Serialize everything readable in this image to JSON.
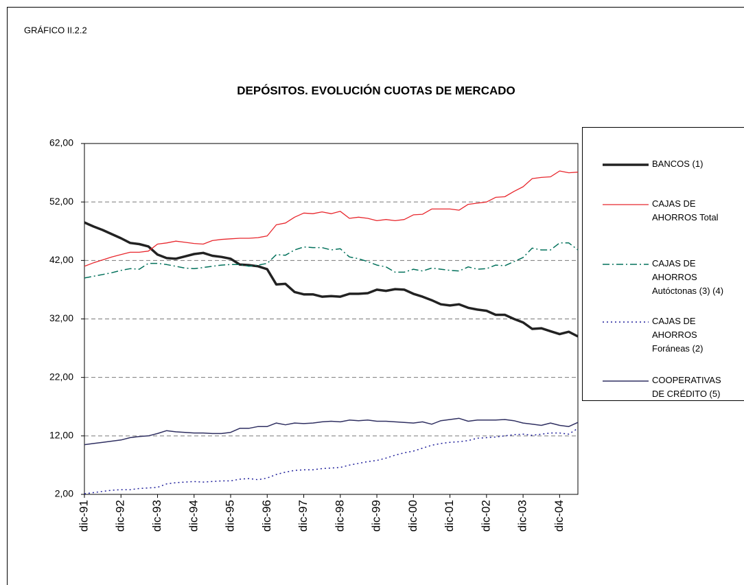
{
  "chart_data": {
    "type": "line",
    "label": "GRÁFICO II.2.2",
    "title": "DEPÓSITOS. EVOLUCIÓN CUOTAS DE MERCADO",
    "categories": [
      "dic-91",
      null,
      null,
      null,
      "dic-92",
      null,
      null,
      null,
      "dic-93",
      null,
      null,
      null,
      "dic-94",
      null,
      null,
      null,
      "dic-95",
      null,
      null,
      null,
      "dic-96",
      null,
      null,
      null,
      "dic-97",
      null,
      null,
      null,
      "dic-98",
      null,
      null,
      null,
      "dic-99",
      null,
      null,
      null,
      "dic-00",
      null,
      null,
      null,
      "dic-01",
      null,
      null,
      null,
      "dic-02",
      null,
      null,
      null,
      "dic-03",
      null,
      null,
      null,
      "dic-04",
      null,
      null
    ],
    "ylim": [
      2,
      62
    ],
    "yticks": [
      {
        "value": 2,
        "label": "2,00"
      },
      {
        "value": 12,
        "label": "12,00"
      },
      {
        "value": 22,
        "label": "22,00"
      },
      {
        "value": 32,
        "label": "32,00"
      },
      {
        "value": 42,
        "label": "42,00"
      },
      {
        "value": 52,
        "label": "52,00"
      },
      {
        "value": 62,
        "label": "62,00"
      }
    ],
    "grid": true,
    "legend": "right",
    "series": [
      {
        "name": "BANCOS (1)",
        "color": "#222222",
        "width": 3.5,
        "line_style": "solid",
        "values": [
          48.5,
          47.8,
          47.2,
          46.5,
          45.8,
          45.0,
          44.8,
          44.4,
          43.0,
          42.4,
          42.3,
          42.7,
          43.1,
          43.3,
          42.8,
          42.6,
          42.3,
          41.3,
          41.2,
          41.0,
          40.5,
          37.9,
          38.0,
          36.6,
          36.2,
          36.2,
          35.8,
          35.9,
          35.8,
          36.3,
          36.3,
          36.4,
          37.0,
          36.8,
          37.1,
          37.0,
          36.3,
          35.8,
          35.2,
          34.5,
          34.3,
          34.5,
          33.9,
          33.6,
          33.4,
          32.7,
          32.7,
          32.0,
          31.4,
          30.3,
          30.4,
          29.9,
          29.4,
          29.8,
          29.0
        ]
      },
      {
        "name": "CAJAS DE AHORROS Total",
        "color": "#e8262c",
        "width": 1.3,
        "line_style": "solid",
        "values": [
          41.0,
          41.6,
          42.1,
          42.6,
          43.0,
          43.4,
          43.4,
          43.6,
          44.8,
          45.0,
          45.3,
          45.1,
          44.9,
          44.8,
          45.4,
          45.6,
          45.7,
          45.8,
          45.8,
          45.9,
          46.2,
          48.1,
          48.4,
          49.4,
          50.1,
          50.0,
          50.3,
          50.0,
          50.4,
          49.2,
          49.4,
          49.2,
          48.8,
          49.0,
          48.8,
          49.0,
          49.8,
          49.9,
          50.8,
          50.8,
          50.8,
          50.6,
          51.6,
          51.8,
          52.0,
          52.8,
          52.9,
          53.8,
          54.6,
          56.0,
          56.2,
          56.3,
          57.3,
          57.0,
          57.1
        ]
      },
      {
        "name": "CAJAS DE AHORROS Autóctonas (3) (4)",
        "color": "#00705a",
        "width": 1.5,
        "line_style": "dashdot",
        "values": [
          39.0,
          39.3,
          39.6,
          39.9,
          40.3,
          40.6,
          40.5,
          41.5,
          41.5,
          41.3,
          41.0,
          40.7,
          40.6,
          40.8,
          41.0,
          41.2,
          41.3,
          41.3,
          41.0,
          41.2,
          41.5,
          43.0,
          42.9,
          43.8,
          44.3,
          44.2,
          44.2,
          43.8,
          44.0,
          42.6,
          42.3,
          41.8,
          41.2,
          40.9,
          40.0,
          40.0,
          40.5,
          40.2,
          40.7,
          40.5,
          40.3,
          40.2,
          40.9,
          40.5,
          40.6,
          41.2,
          41.1,
          41.8,
          42.5,
          44.1,
          43.8,
          43.8,
          45.0,
          45.0,
          43.8
        ]
      },
      {
        "name": "CAJAS DE AHORROS Foráneas (2)",
        "color": "#1c1c9a",
        "width": 1.5,
        "line_style": "dotted",
        "values": [
          2.1,
          2.3,
          2.5,
          2.7,
          2.8,
          2.8,
          3.0,
          3.1,
          3.2,
          3.8,
          4.0,
          4.1,
          4.2,
          4.1,
          4.2,
          4.3,
          4.3,
          4.6,
          4.7,
          4.5,
          4.8,
          5.4,
          5.8,
          6.1,
          6.2,
          6.2,
          6.4,
          6.5,
          6.6,
          7.0,
          7.3,
          7.6,
          7.8,
          8.2,
          8.7,
          9.1,
          9.4,
          9.9,
          10.4,
          10.7,
          10.9,
          11.0,
          11.2,
          11.6,
          11.7,
          11.8,
          12.0,
          12.2,
          12.3,
          12.1,
          12.3,
          12.5,
          12.5,
          12.3,
          13.3
        ]
      },
      {
        "name": "COOPERATIVAS DE CRÉDITO (5)",
        "color": "#2e2e60",
        "width": 1.5,
        "line_style": "solid",
        "values": [
          10.5,
          10.7,
          10.9,
          11.1,
          11.3,
          11.7,
          11.9,
          12.0,
          12.4,
          12.9,
          12.7,
          12.6,
          12.5,
          12.5,
          12.4,
          12.4,
          12.6,
          13.3,
          13.3,
          13.6,
          13.6,
          14.2,
          13.9,
          14.2,
          14.1,
          14.2,
          14.4,
          14.5,
          14.4,
          14.7,
          14.6,
          14.7,
          14.5,
          14.5,
          14.4,
          14.3,
          14.2,
          14.4,
          14.0,
          14.6,
          14.8,
          15.0,
          14.5,
          14.7,
          14.7,
          14.7,
          14.8,
          14.6,
          14.2,
          14.0,
          13.8,
          14.2,
          13.8,
          13.6,
          14.3
        ]
      }
    ]
  }
}
